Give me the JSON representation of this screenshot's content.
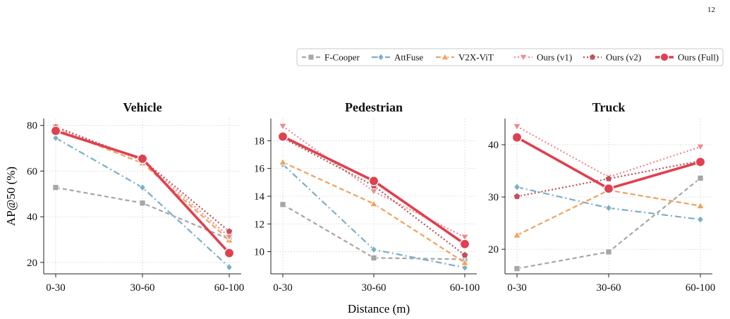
{
  "page_number": "12",
  "figure": {
    "ylabel": "AP@50 (%)",
    "xlabel": "Distance (m)",
    "legend_position": "top-right"
  },
  "series_styles": [
    {
      "name": "F-Cooper",
      "color": "#a6a6a6",
      "marker": "square",
      "dash": "6,4",
      "width": 2.2
    },
    {
      "name": "AttFuse",
      "color": "#7aafc9",
      "marker": "diamond",
      "dash": "9,4,2,4",
      "width": 2.2
    },
    {
      "name": "V2X-ViT",
      "color": "#f0a25e",
      "marker": "triangle",
      "dash": "7,4",
      "width": 2.2
    },
    {
      "name": "Ours (v1)",
      "color": "#ee8a8e",
      "marker": "tri-down",
      "dash": "2,3",
      "width": 2.2
    },
    {
      "name": "Ours (v2)",
      "color": "#c0505a",
      "marker": "pentagon",
      "dash": "2,3",
      "width": 2.2
    },
    {
      "name": "Ours (Full)",
      "color": "#e0404f",
      "marker": "circle",
      "dash": "",
      "width": 3.6
    }
  ],
  "chart_data": [
    {
      "type": "line",
      "title": "Vehicle",
      "categories": [
        "0-30",
        "30-60",
        "60-100"
      ],
      "ylim": [
        15,
        83
      ],
      "yticks": [
        20,
        40,
        60,
        80
      ],
      "grid": true,
      "series": [
        {
          "name": "F-Cooper",
          "values": [
            52.8,
            46.0,
            30.2
          ]
        },
        {
          "name": "AttFuse",
          "values": [
            74.5,
            52.8,
            17.9
          ]
        },
        {
          "name": "V2X-ViT",
          "values": [
            78.5,
            63.5,
            29.8
          ]
        },
        {
          "name": "Ours (v1)",
          "values": [
            79.5,
            64.5,
            31.2
          ]
        },
        {
          "name": "Ours (v2)",
          "values": [
            79.2,
            65.0,
            33.6
          ]
        },
        {
          "name": "Ours (Full)",
          "values": [
            77.6,
            65.4,
            24.1
          ]
        }
      ]
    },
    {
      "type": "line",
      "title": "Pedestrian",
      "categories": [
        "0-30",
        "30-60",
        "60-100"
      ],
      "ylim": [
        8.4,
        19.6
      ],
      "yticks": [
        10,
        12,
        14,
        16,
        18
      ],
      "grid": true,
      "series": [
        {
          "name": "F-Cooper",
          "values": [
            13.4,
            9.55,
            9.45
          ]
        },
        {
          "name": "AttFuse",
          "values": [
            16.3,
            10.15,
            8.85
          ]
        },
        {
          "name": "V2X-ViT",
          "values": [
            16.45,
            13.45,
            9.2
          ]
        },
        {
          "name": "Ours (v1)",
          "values": [
            19.05,
            14.35,
            11.05
          ]
        },
        {
          "name": "Ours (v2)",
          "values": [
            18.2,
            14.75,
            9.75
          ]
        },
        {
          "name": "Ours (Full)",
          "values": [
            18.3,
            15.1,
            10.55
          ]
        }
      ]
    },
    {
      "type": "line",
      "title": "Truck",
      "categories": [
        "0-30",
        "30-60",
        "60-100"
      ],
      "ylim": [
        15.3,
        45
      ],
      "yticks": [
        20,
        30,
        40
      ],
      "grid": true,
      "series": [
        {
          "name": "F-Cooper",
          "values": [
            16.3,
            19.5,
            33.6
          ]
        },
        {
          "name": "AttFuse",
          "values": [
            31.9,
            27.9,
            25.7
          ]
        },
        {
          "name": "V2X-ViT",
          "values": [
            22.7,
            31.3,
            28.3
          ]
        },
        {
          "name": "Ours (v1)",
          "values": [
            43.5,
            33.8,
            39.6
          ]
        },
        {
          "name": "Ours (v2)",
          "values": [
            30.1,
            33.5,
            36.9
          ]
        },
        {
          "name": "Ours (Full)",
          "values": [
            41.4,
            31.6,
            36.7
          ]
        }
      ]
    }
  ]
}
